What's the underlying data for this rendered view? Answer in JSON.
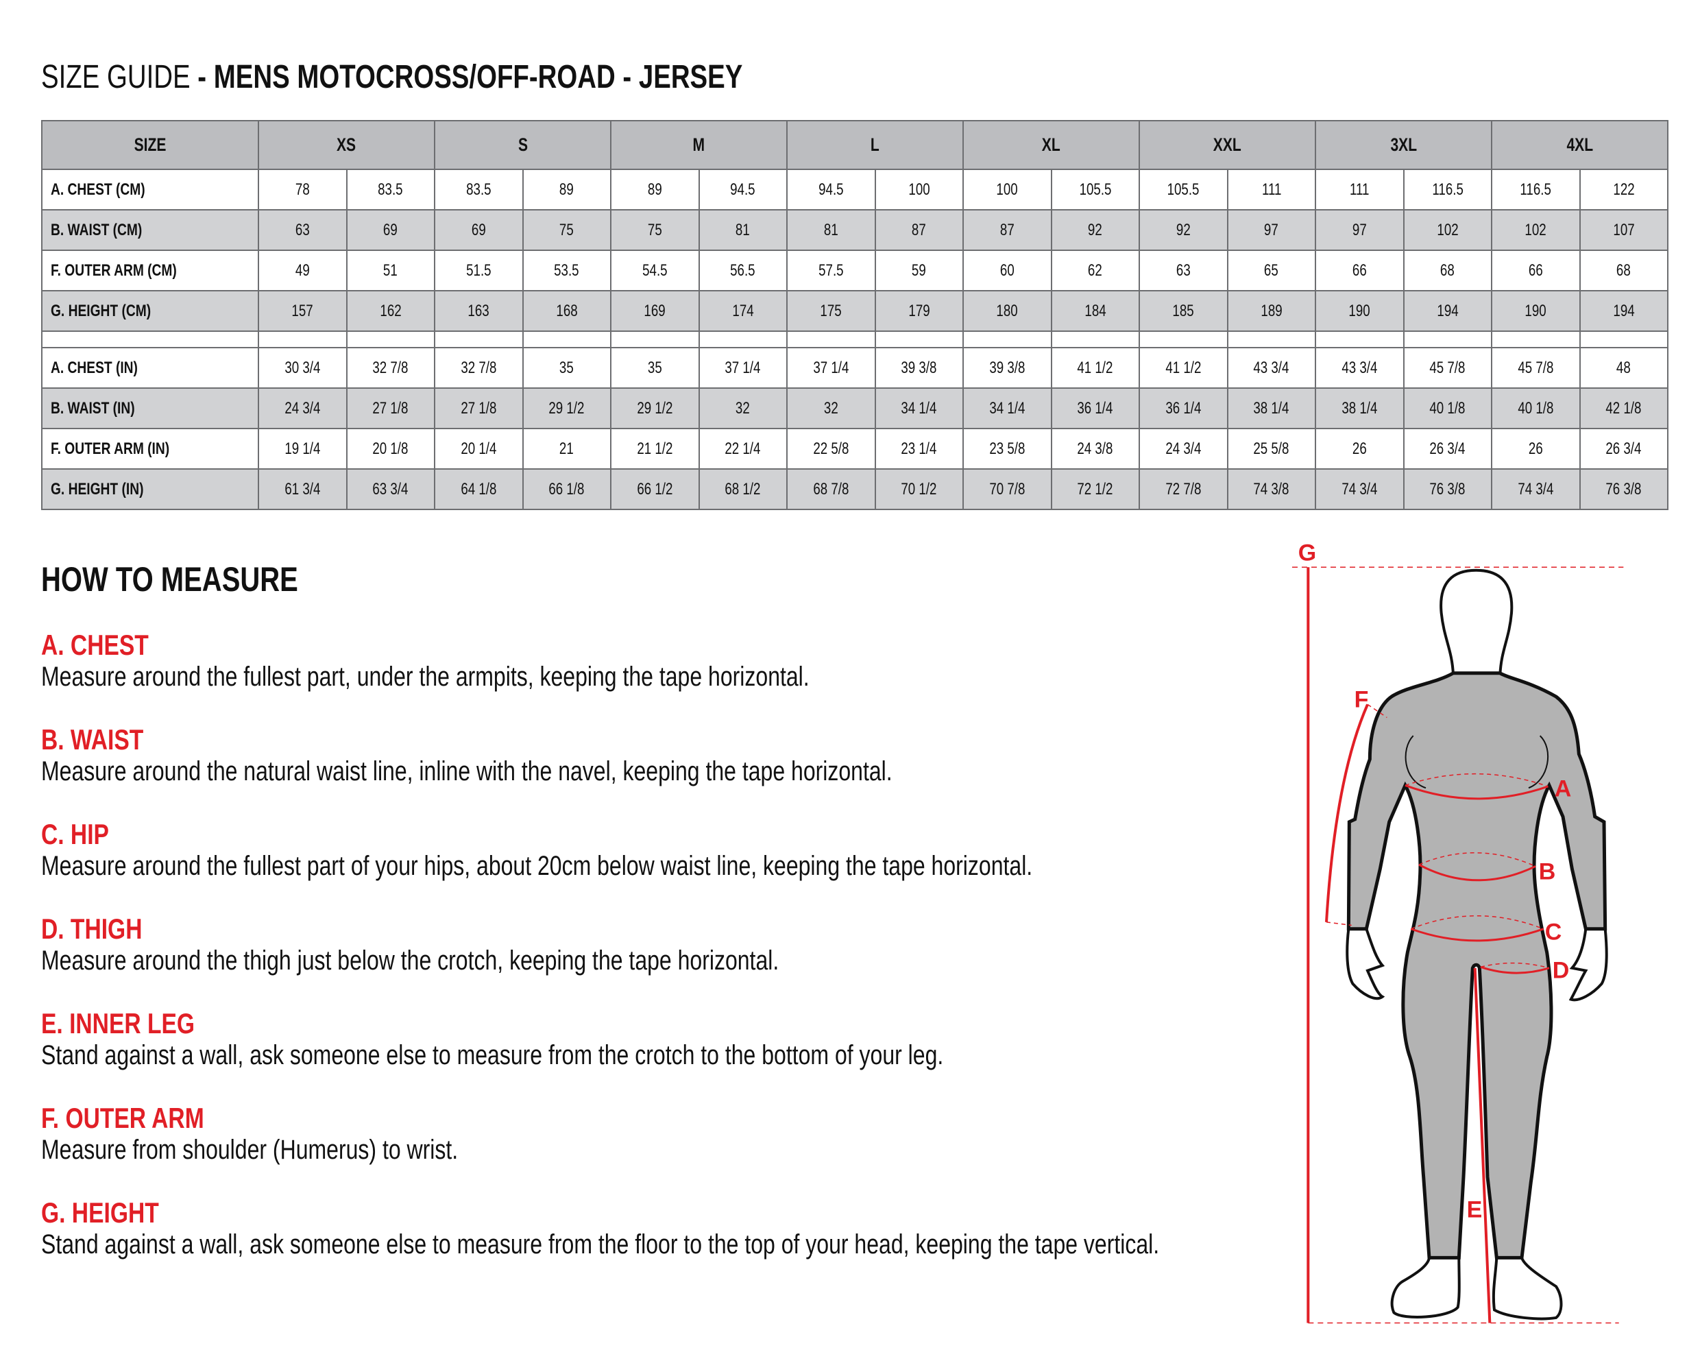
{
  "title": {
    "light": "SIZE GUIDE",
    "bold": " - MENS MOTOCROSS/OFF-ROAD - JERSEY"
  },
  "table": {
    "size_header": "SIZE",
    "sizes": [
      "XS",
      "S",
      "M",
      "L",
      "XL",
      "XXL",
      "3XL",
      "4XL"
    ],
    "cm_rows": [
      {
        "label": "A. CHEST (CM)",
        "values": [
          "78",
          "83.5",
          "83.5",
          "89",
          "89",
          "94.5",
          "94.5",
          "100",
          "100",
          "105.5",
          "105.5",
          "111",
          "111",
          "116.5",
          "116.5",
          "122"
        ]
      },
      {
        "label": "B. WAIST (CM)",
        "values": [
          "63",
          "69",
          "69",
          "75",
          "75",
          "81",
          "81",
          "87",
          "87",
          "92",
          "92",
          "97",
          "97",
          "102",
          "102",
          "107"
        ]
      },
      {
        "label": "F. OUTER ARM (CM)",
        "values": [
          "49",
          "51",
          "51.5",
          "53.5",
          "54.5",
          "56.5",
          "57.5",
          "59",
          "60",
          "62",
          "63",
          "65",
          "66",
          "68",
          "66",
          "68"
        ]
      },
      {
        "label": "G. HEIGHT (CM)",
        "values": [
          "157",
          "162",
          "163",
          "168",
          "169",
          "174",
          "175",
          "179",
          "180",
          "184",
          "185",
          "189",
          "190",
          "194",
          "190",
          "194"
        ]
      }
    ],
    "in_rows": [
      {
        "label": "A. CHEST (IN)",
        "values": [
          "30 3/4",
          "32 7/8",
          "32 7/8",
          "35",
          "35",
          "37 1/4",
          "37 1/4",
          "39 3/8",
          "39 3/8",
          "41 1/2",
          "41 1/2",
          "43 3/4",
          "43 3/4",
          "45 7/8",
          "45 7/8",
          "48"
        ]
      },
      {
        "label": "B. WAIST (IN)",
        "values": [
          "24 3/4",
          "27 1/8",
          "27 1/8",
          "29 1/2",
          "29 1/2",
          "32",
          "32",
          "34 1/4",
          "34 1/4",
          "36 1/4",
          "36 1/4",
          "38 1/4",
          "38 1/4",
          "40 1/8",
          "40 1/8",
          "42 1/8"
        ]
      },
      {
        "label": "F. OUTER ARM (IN)",
        "values": [
          "19 1/4",
          "20 1/8",
          "20 1/4",
          "21",
          "21 1/2",
          "22 1/4",
          "22 5/8",
          "23 1/4",
          "23 5/8",
          "24 3/8",
          "24 3/4",
          "25 5/8",
          "26",
          "26 3/4",
          "26",
          "26 3/4"
        ]
      },
      {
        "label": "G. HEIGHT (IN)",
        "values": [
          "61 3/4",
          "63 3/4",
          "64 1/8",
          "66 1/8",
          "66 1/2",
          "68 1/2",
          "68 7/8",
          "70 1/2",
          "70 7/8",
          "72 1/2",
          "72 7/8",
          "74 3/8",
          "74 3/4",
          "76 3/8",
          "74 3/4",
          "76 3/8"
        ]
      }
    ]
  },
  "how_to_measure": {
    "heading": "HOW TO MEASURE",
    "sections": [
      {
        "title": "A. CHEST",
        "text": "Measure around the fullest part, under the armpits, keeping the tape horizontal."
      },
      {
        "title": "B. WAIST",
        "text": "Measure around the natural waist line, inline with the navel, keeping the tape horizontal."
      },
      {
        "title": "C. HIP",
        "text": "Measure around the fullest part of your hips, about 20cm below waist line, keeping the tape horizontal."
      },
      {
        "title": "D. THIGH",
        "text": "Measure around the thigh just below the crotch, keeping the tape horizontal."
      },
      {
        "title": "E. INNER LEG",
        "text": "Stand against a wall, ask someone else to measure from the crotch to the bottom of your leg."
      },
      {
        "title": "F. OUTER ARM",
        "text": "Measure from shoulder (Humerus) to wrist."
      },
      {
        "title": "G. HEIGHT",
        "text": "Stand against a wall, ask someone else to measure from the floor to the top of your head, keeping the tape vertical."
      }
    ]
  },
  "figure": {
    "labels": {
      "a": "A",
      "b": "B",
      "c": "C",
      "d": "D",
      "e": "E",
      "f": "F",
      "g": "G"
    },
    "icon": "body-measurement-diagram"
  },
  "colors": {
    "accent_red": "#e11f26",
    "header_gray": "#bcbdc0",
    "row_gray": "#d1d2d4",
    "suit_gray": "#b3b3b3",
    "border": "#6d6e71"
  }
}
